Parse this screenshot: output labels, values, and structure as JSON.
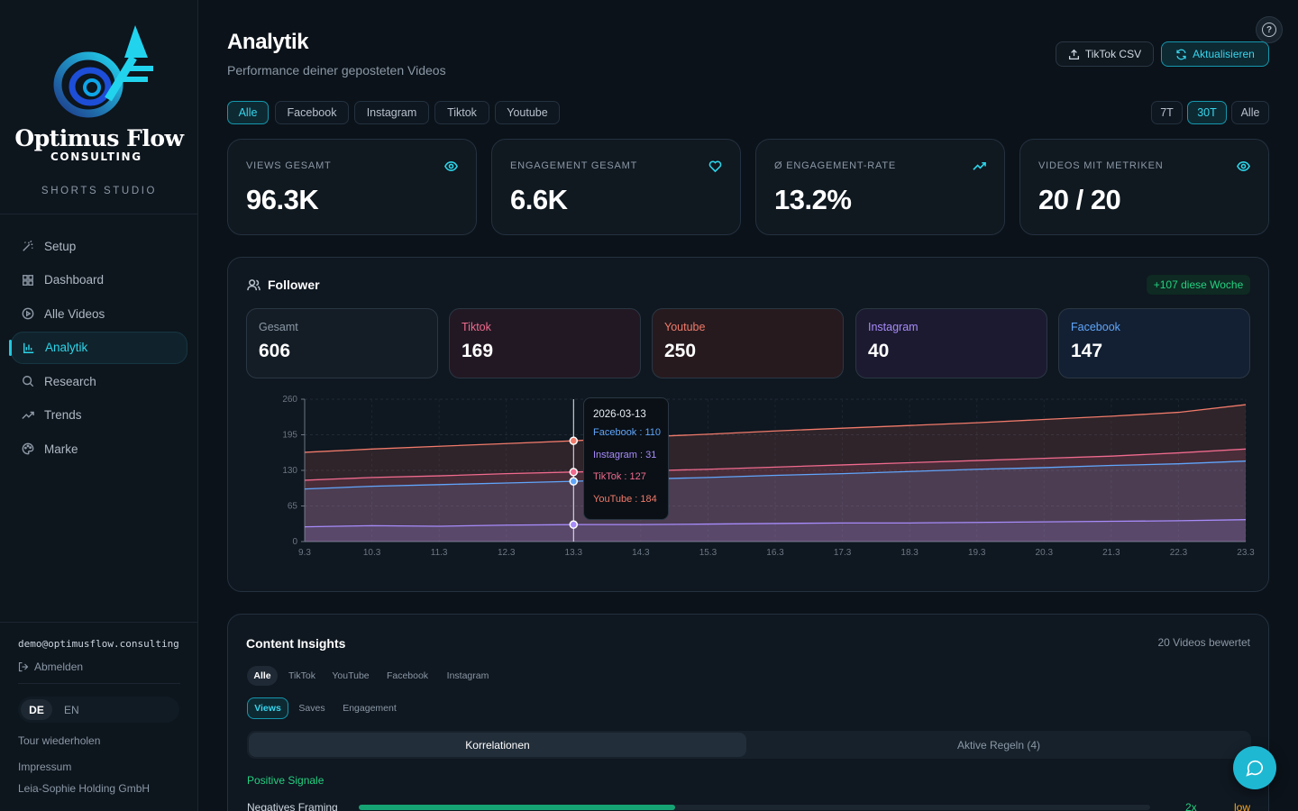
{
  "brand": {
    "name": "Optimus Flow",
    "sub": "CONSULTING",
    "studio": "SHORTS STUDIO",
    "accent": "#22c7e0"
  },
  "nav": [
    {
      "label": "Setup",
      "icon": "magic-wand-icon",
      "active": false
    },
    {
      "label": "Dashboard",
      "icon": "grid-icon",
      "active": false
    },
    {
      "label": "Alle Videos",
      "icon": "play-circle-icon",
      "active": false
    },
    {
      "label": "Analytik",
      "icon": "bar-chart-icon",
      "active": true
    },
    {
      "label": "Research",
      "icon": "search-icon",
      "active": false
    },
    {
      "label": "Trends",
      "icon": "trending-icon",
      "active": false
    },
    {
      "label": "Marke",
      "icon": "palette-icon",
      "active": false
    }
  ],
  "account": {
    "email": "demo@optimusflow.consulting",
    "logout": "Abmelden",
    "lang_de": "DE",
    "lang_en": "EN",
    "tour": "Tour wiederholen",
    "impressum": "Impressum",
    "company": "Leia-Sophie Holding GmbH"
  },
  "header": {
    "title": "Analytik",
    "subtitle": "Performance deiner geposteten Videos",
    "csv_button": "TikTok CSV",
    "refresh_button": "Aktualisieren",
    "help": "?"
  },
  "platform_filters": [
    "Alle",
    "Facebook",
    "Instagram",
    "Tiktok",
    "Youtube"
  ],
  "platform_selected": "Alle",
  "range_filters": [
    "7T",
    "30T",
    "Alle"
  ],
  "range_selected": "30T",
  "stats": [
    {
      "label": "VIEWS GESAMT",
      "value": "96.3K",
      "icon": "eye-icon"
    },
    {
      "label": "ENGAGEMENT GESAMT",
      "value": "6.6K",
      "icon": "heart-icon"
    },
    {
      "label": "Ø ENGAGEMENT-RATE",
      "value": "13.2%",
      "icon": "trending-up-icon"
    },
    {
      "label": "VIDEOS MIT METRIKEN",
      "value": "20 / 20",
      "icon": "eye-icon"
    }
  ],
  "follower": {
    "title": "Follower",
    "week_badge": "+107 diese Woche",
    "cards": [
      {
        "label": "Gesamt",
        "value": "606",
        "color": "#8a98a6",
        "bg": "#141d26"
      },
      {
        "label": "Tiktok",
        "value": "169",
        "color": "#f06a8e",
        "bg": "#221823"
      },
      {
        "label": "Youtube",
        "value": "250",
        "color": "#f07a6a",
        "bg": "#261a1e"
      },
      {
        "label": "Instagram",
        "value": "40",
        "color": "#a78bfa",
        "bg": "#1c1a30"
      },
      {
        "label": "Facebook",
        "value": "147",
        "color": "#60a5fa",
        "bg": "#132033"
      }
    ]
  },
  "chart_data": {
    "type": "area",
    "x": [
      "9.3",
      "10.3",
      "11.3",
      "12.3",
      "13.3",
      "14.3",
      "15.3",
      "16.3",
      "17.3",
      "18.3",
      "19.3",
      "20.3",
      "21.3",
      "22.3",
      "23.3"
    ],
    "ylim": [
      0,
      260
    ],
    "yticks": [
      0,
      65,
      130,
      195,
      260
    ],
    "series": [
      {
        "name": "YouTube",
        "color": "#f07a6a",
        "values": [
          163,
          169,
          174,
          179,
          184,
          191,
          196,
          202,
          207,
          212,
          217,
          223,
          229,
          236,
          250
        ]
      },
      {
        "name": "TikTok",
        "color": "#f06a8e",
        "values": [
          112,
          117,
          120,
          124,
          127,
          129,
          132,
          136,
          140,
          144,
          148,
          152,
          156,
          162,
          169
        ]
      },
      {
        "name": "Facebook",
        "color": "#60a5fa",
        "values": [
          96,
          101,
          104,
          107,
          110,
          114,
          117,
          121,
          124,
          128,
          132,
          135,
          139,
          142,
          147
        ]
      },
      {
        "name": "Instagram",
        "color": "#a78bfa",
        "values": [
          27,
          29,
          28,
          30,
          31,
          31,
          32,
          33,
          34,
          34,
          35,
          36,
          37,
          38,
          40
        ]
      }
    ],
    "tooltip": {
      "date": "2026-03-13",
      "index": 4,
      "rows": [
        {
          "label": "Facebook : 110",
          "color": "#60a5fa"
        },
        {
          "label": "Instagram : 31",
          "color": "#a78bfa"
        },
        {
          "label": "TikTok : 127",
          "color": "#f06a8e"
        },
        {
          "label": "YouTube : 184",
          "color": "#f07a6a"
        }
      ]
    }
  },
  "insights": {
    "title": "Content Insights",
    "count": "20 Videos bewertet",
    "platform_tabs": [
      "Alle",
      "TikTok",
      "YouTube",
      "Facebook",
      "Instagram"
    ],
    "metric_tabs": [
      "Views",
      "Saves",
      "Engagement"
    ],
    "segments": [
      "Korrelationen",
      "Aktive Regeln (4)"
    ],
    "positive": "Positive Signale",
    "negative_row": {
      "label": "Negatives Framing",
      "multiplier": "2x",
      "level": "low",
      "fill": 0.4
    }
  }
}
